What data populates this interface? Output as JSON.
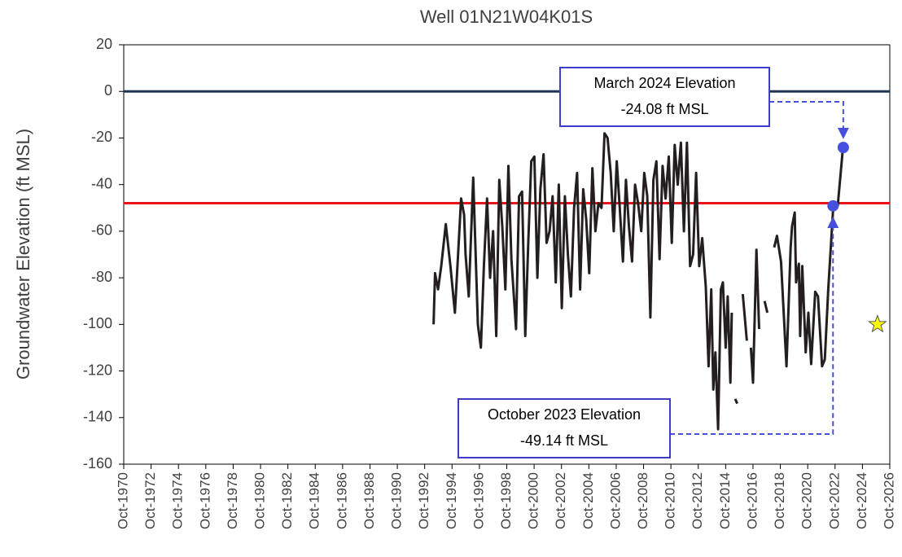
{
  "chart_data": {
    "type": "line",
    "title": "Well 01N21W04K01S",
    "y_label": "Groundwater Elevation (ft MSL)",
    "xlim": [
      1970.75,
      2026.75
    ],
    "xticks": [
      {
        "value": 1970.75,
        "label": "Oct-1970"
      },
      {
        "value": 1972.75,
        "label": "Oct-1972"
      },
      {
        "value": 1974.75,
        "label": "Oct-1974"
      },
      {
        "value": 1976.75,
        "label": "Oct-1976"
      },
      {
        "value": 1978.75,
        "label": "Oct-1978"
      },
      {
        "value": 1980.75,
        "label": "Oct-1980"
      },
      {
        "value": 1982.75,
        "label": "Oct-1982"
      },
      {
        "value": 1984.75,
        "label": "Oct-1984"
      },
      {
        "value": 1986.75,
        "label": "Oct-1986"
      },
      {
        "value": 1988.75,
        "label": "Oct-1988"
      },
      {
        "value": 1990.75,
        "label": "Oct-1990"
      },
      {
        "value": 1992.75,
        "label": "Oct-1992"
      },
      {
        "value": 1994.75,
        "label": "Oct-1994"
      },
      {
        "value": 1996.75,
        "label": "Oct-1996"
      },
      {
        "value": 1998.75,
        "label": "Oct-1998"
      },
      {
        "value": 2000.75,
        "label": "Oct-2000"
      },
      {
        "value": 2002.75,
        "label": "Oct-2002"
      },
      {
        "value": 2004.75,
        "label": "Oct-2004"
      },
      {
        "value": 2006.75,
        "label": "Oct-2006"
      },
      {
        "value": 2008.75,
        "label": "Oct-2008"
      },
      {
        "value": 2010.75,
        "label": "Oct-2010"
      },
      {
        "value": 2012.75,
        "label": "Oct-2012"
      },
      {
        "value": 2014.75,
        "label": "Oct-2014"
      },
      {
        "value": 2016.75,
        "label": "Oct-2016"
      },
      {
        "value": 2018.75,
        "label": "Oct-2018"
      },
      {
        "value": 2020.75,
        "label": "Oct-2020"
      },
      {
        "value": 2022.75,
        "label": "Oct-2022"
      },
      {
        "value": 2024.75,
        "label": "Oct-2024"
      },
      {
        "value": 2026.75,
        "label": "Oct-2026"
      }
    ],
    "ylim": [
      -160,
      20
    ],
    "yticks": [
      20,
      0,
      -20,
      -40,
      -60,
      -80,
      -100,
      -120,
      -140,
      -160
    ],
    "grid": false,
    "x": [
      1993.4,
      1993.51,
      1993.73,
      1993.96,
      1994.29,
      1994.63,
      1994.96,
      1995.19,
      1995.41,
      1995.63,
      1995.74,
      1995.97,
      1996.3,
      1996.64,
      1996.86,
      1997.08,
      1997.31,
      1997.53,
      1997.75,
      1997.98,
      1998.2,
      1998.42,
      1998.65,
      1998.87,
      1999.09,
      1999.43,
      1999.65,
      1999.87,
      2000.1,
      2000.32,
      2000.54,
      2000.77,
      2000.99,
      2001.21,
      2001.44,
      2001.66,
      2001.88,
      2002.1,
      2002.33,
      2002.55,
      2002.77,
      2003.0,
      2003.22,
      2003.44,
      2003.67,
      2003.89,
      2004.11,
      2004.34,
      2004.56,
      2004.78,
      2005.01,
      2005.23,
      2005.45,
      2005.68,
      2005.9,
      2006.12,
      2006.35,
      2006.57,
      2006.79,
      2007.01,
      2007.24,
      2007.46,
      2007.68,
      2007.91,
      2008.13,
      2008.35,
      2008.58,
      2008.8,
      2009.02,
      2009.25,
      2009.47,
      2009.69,
      2009.92,
      2010.14,
      2010.36,
      2010.59,
      2010.81,
      2011.03,
      2011.25,
      2011.48,
      2011.7,
      2011.92,
      2012.15,
      2012.37,
      2012.59,
      2012.82,
      2013.04,
      2013.3,
      2013.5,
      2013.7,
      2013.85,
      2014.0,
      2014.2,
      2014.4,
      2014.55,
      2014.75,
      2014.9,
      2015.1,
      2015.2,
      2015.33,
      2015.45,
      2015.6,
      2015.8,
      2016.0,
      2016.3,
      2016.45,
      2016.6,
      2016.75,
      2017.0,
      2017.2,
      2017.4,
      2017.6,
      2017.8,
      2018.05,
      2018.3,
      2018.5,
      2018.8,
      2019.2,
      2019.5,
      2019.6,
      2019.8,
      2019.9,
      2020.1,
      2020.2,
      2020.35,
      2020.6,
      2020.8,
      2021.0,
      2021.3,
      2021.5,
      2021.8,
      2022.0,
      2022.25,
      2022.6,
      2022.95,
      2023.35
    ],
    "series": [
      {
        "name": "Groundwater Elevation",
        "color": "#231f20",
        "values": [
          -100,
          -78,
          -85,
          -75,
          -57,
          -75,
          -95,
          -70,
          -46,
          -53,
          -70,
          -88,
          -37,
          -100,
          -110,
          -75,
          -46,
          -80,
          -60,
          -105,
          -38,
          -58,
          -85,
          -32,
          -72,
          -102,
          -45,
          -43,
          -105,
          -65,
          -30,
          -28,
          -80,
          -42,
          -27,
          -65,
          -60,
          -45,
          -82,
          -40,
          -93,
          -45,
          -70,
          -88,
          -50,
          -35,
          -85,
          -42,
          -55,
          -78,
          -33,
          -60,
          -48,
          -50,
          -18,
          -20,
          -35,
          -60,
          -30,
          -50,
          -73,
          -38,
          -58,
          -73,
          -40,
          -48,
          -60,
          -35,
          -45,
          -97,
          -38,
          -30,
          -72,
          -32,
          -46,
          -28,
          -65,
          -23,
          -40,
          -22,
          -60,
          -22,
          -75,
          -70,
          -35,
          -75,
          -63,
          -84,
          -118,
          -85,
          -128,
          -112,
          -145,
          -85,
          -82,
          -110,
          -88,
          -125,
          -95,
          null,
          -132,
          -134,
          null,
          -87,
          -107,
          null,
          -110,
          -125,
          -68,
          -102,
          null,
          -90,
          -95,
          null,
          -67,
          -62,
          -73,
          -118,
          -67,
          -58,
          -52,
          -82,
          -74,
          -105,
          -75,
          -112,
          -95,
          -117,
          -86,
          -88,
          -118,
          -115,
          -85,
          -51,
          -49,
          -22.5
        ]
      }
    ],
    "reference_lines": [
      {
        "value": 0,
        "color": "#1f3552"
      },
      {
        "value": -48,
        "color": "#e8141b"
      }
    ],
    "highlight_points": {
      "color": "#4650dc",
      "x": [
        2022.6,
        2023.35
      ],
      "values": [
        -49.14,
        -24.08
      ]
    },
    "star": {
      "x": 2025.85,
      "value": -100,
      "color": "#ffff00"
    },
    "annotations": [
      {
        "lines": [
          "March 2024 Elevation",
          "-24.08 ft MSL"
        ]
      },
      {
        "lines": [
          "October 2023 Elevation",
          "-49.14 ft MSL"
        ]
      }
    ]
  }
}
